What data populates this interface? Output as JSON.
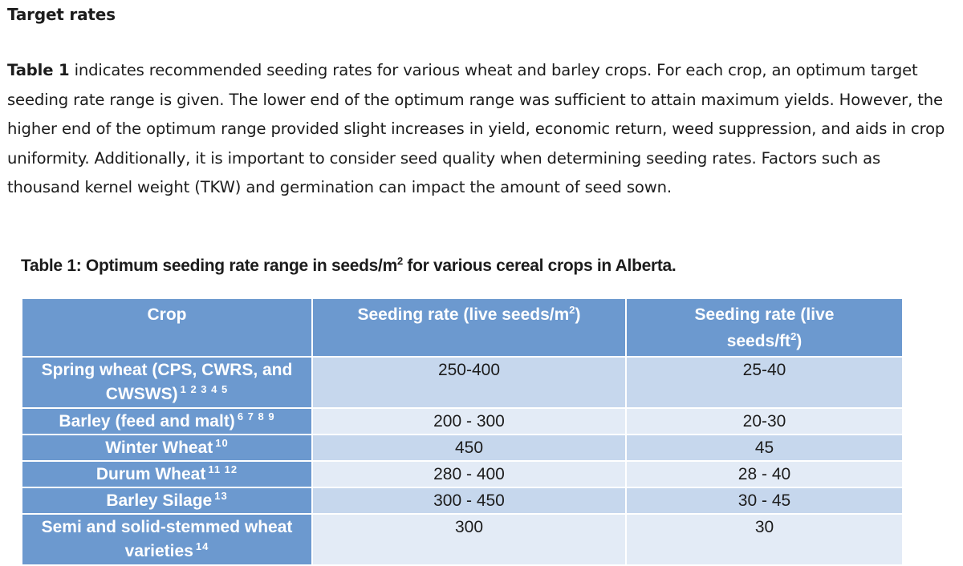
{
  "section": {
    "heading": "Target rates"
  },
  "paragraph": {
    "lead": "Table 1",
    "body": " indicates recommended seeding rates for various wheat and barley crops. For each crop, an optimum target seeding rate range is given. The lower end of the optimum range was sufficient to attain maximum yields. However, the higher end of the optimum range provided slight increases in yield, economic return, weed suppression, and aids in crop uniformity. Additionally, it is important to consider seed quality when determining seeding rates. Factors such as thousand kernel weight (TKW) and germination can impact the amount of seed sown."
  },
  "table": {
    "caption_pre": "Table 1: Optimum seeding rate range in seeds/m",
    "caption_sup": "2",
    "caption_post": " for various cereal crops in Alberta.",
    "headers": {
      "crop": "Crop",
      "rate_m2_pre": "Seeding rate (live seeds/m",
      "rate_m2_sup": "2",
      "rate_m2_post": ")",
      "rate_ft2_pre": "Seeding rate (live seeds/ft",
      "rate_ft2_sup": "2",
      "rate_ft2_post": ")"
    },
    "rows": [
      {
        "crop": "Spring wheat (CPS, CWRS, and CWSWS)",
        "refs": "1 2 3 4 5",
        "rate_m2": "250-400",
        "rate_ft2": "25-40"
      },
      {
        "crop": "Barley (feed and malt)",
        "refs": "6 7 8 9",
        "rate_m2": "200 - 300",
        "rate_ft2": "20-30"
      },
      {
        "crop": "Winter Wheat",
        "refs": "10",
        "rate_m2": "450",
        "rate_ft2": "45"
      },
      {
        "crop": "Durum Wheat",
        "refs": "11 12",
        "rate_m2": "280 - 400",
        "rate_ft2": "28 - 40"
      },
      {
        "crop": "Barley Silage",
        "refs": "13",
        "rate_m2": "300 - 450",
        "rate_ft2": "30 - 45"
      },
      {
        "crop": "Semi and solid-stemmed wheat varieties",
        "refs": "14",
        "rate_m2": "300",
        "rate_ft2": "30"
      }
    ]
  }
}
